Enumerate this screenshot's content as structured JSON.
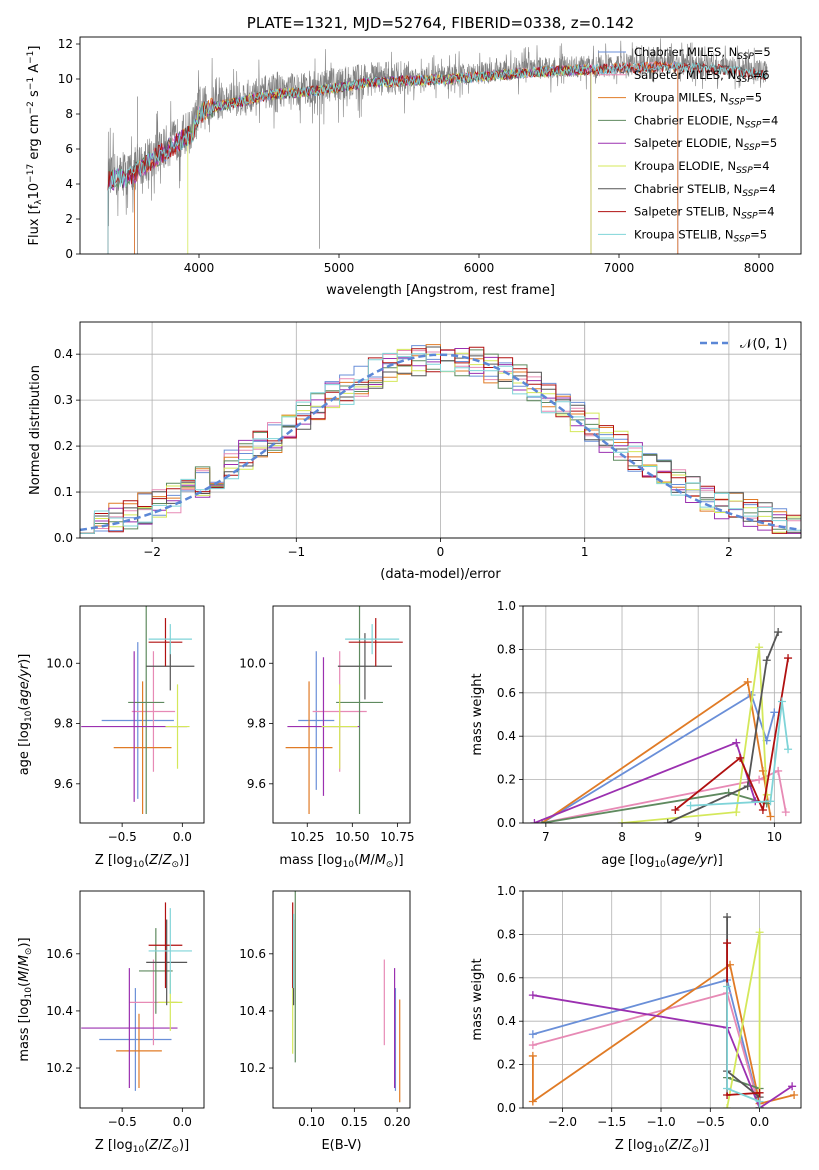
{
  "colors": {
    "chabrier_miles": "#6a8fd8",
    "salpeter_miles": "#e78ab5",
    "kroupa_miles": "#e07b26",
    "chabrier_elodie": "#5f8a5f",
    "salpeter_elodie": "#9b30b0",
    "kroupa_elodie": "#d4e85a",
    "chabrier_stelib": "#555555",
    "salpeter_stelib": "#b01010",
    "kroupa_stelib": "#7fd4d8",
    "data": "#808080",
    "normal": "#5b87d6",
    "grid": "#b0b0b0"
  },
  "chart_data": [
    {
      "id": "spectrum",
      "type": "line",
      "title": "PLATE=1321, MJD=52764, FIBERID=0338, z=0.142",
      "xlabel": "wavelength [Angstrom, rest frame]",
      "ylabel": "Flux [f_λ10^-17 erg cm^-2 s^-1 A^-1]",
      "xlim": [
        3150,
        8300
      ],
      "ylim": [
        0,
        12.4
      ],
      "xticks": [
        4000,
        5000,
        6000,
        7000,
        8000
      ],
      "yticks": [
        0,
        2,
        4,
        6,
        8,
        10,
        12
      ],
      "grid": false,
      "legend": "upper right",
      "continuum": [
        [
          3350,
          4.4
        ],
        [
          3500,
          4.6
        ],
        [
          3650,
          5.5
        ],
        [
          3800,
          6.3
        ],
        [
          3950,
          7.1
        ],
        [
          4000,
          8.2
        ],
        [
          4100,
          8.6
        ],
        [
          4300,
          8.9
        ],
        [
          4500,
          9.3
        ],
        [
          4800,
          9.5
        ],
        [
          5000,
          9.7
        ],
        [
          5200,
          10.0
        ],
        [
          5500,
          10.1
        ],
        [
          5800,
          10.2
        ],
        [
          6100,
          10.4
        ],
        [
          6400,
          10.6
        ],
        [
          6700,
          10.7
        ],
        [
          7000,
          10.8
        ],
        [
          7300,
          10.9
        ],
        [
          7600,
          10.8
        ],
        [
          7900,
          10.6
        ],
        [
          8050,
          10.4
        ]
      ],
      "series": [
        {
          "name": "Chabrier MILES, N_SSP=5"
        },
        {
          "name": "Salpeter MILES, N_SSP=6"
        },
        {
          "name": "Kroupa MILES, N_SSP=5"
        },
        {
          "name": "Chabrier ELODIE, N_SSP=4"
        },
        {
          "name": "Salpeter ELODIE, N_SSP=5"
        },
        {
          "name": "Kroupa ELODIE, N_SSP=4"
        },
        {
          "name": "Chabrier STELIB, N_SSP=4"
        },
        {
          "name": "Salpeter STELIB, N_SSP=4"
        },
        {
          "name": "Kroupa STELIB, N_SSP=5"
        }
      ]
    },
    {
      "id": "residuals",
      "type": "line",
      "xlabel": "(data-model)/error",
      "ylabel": "Normed distribution",
      "xlim": [
        -2.5,
        2.5
      ],
      "ylim": [
        0,
        0.47
      ],
      "xticks": [
        -2,
        -1,
        0,
        1,
        2
      ],
      "yticks": [
        0.0,
        0.1,
        0.2,
        0.3,
        0.4
      ],
      "grid": true,
      "legend": "upper right",
      "normal_label": "𝒩(0, 1)",
      "bin_width": 0.1
    },
    {
      "id": "age_vs_Z",
      "type": "scatter",
      "xlabel": "Z [log10(Z/Z⊙)]",
      "ylabel": "age [log10(age/yr)]",
      "xlim": [
        -0.85,
        0.18
      ],
      "ylim": [
        9.47,
        10.19
      ],
      "xticks": [
        -0.5,
        0.0
      ],
      "yticks": [
        9.6,
        9.8,
        10.0
      ],
      "points": [
        {
          "series": "chabrier_miles",
          "x": -0.37,
          "y": 9.81,
          "xerr": 0.3,
          "yerr": 0.26
        },
        {
          "series": "salpeter_miles",
          "x": -0.24,
          "y": 9.84,
          "xerr": 0.18,
          "yerr": 0.2
        },
        {
          "series": "kroupa_miles",
          "x": -0.33,
          "y": 9.72,
          "xerr": 0.24,
          "yerr": 0.22
        },
        {
          "series": "chabrier_elodie",
          "x": -0.3,
          "y": 9.87,
          "xerr": 0.15,
          "yerr": 0.37
        },
        {
          "series": "salpeter_elodie",
          "x": -0.4,
          "y": 9.79,
          "xerr": 0.44,
          "yerr": 0.25
        },
        {
          "series": "kroupa_elodie",
          "x": -0.04,
          "y": 9.79,
          "xerr": 0.1,
          "yerr": 0.14
        },
        {
          "series": "chabrier_stelib",
          "x": -0.1,
          "y": 9.99,
          "xerr": 0.2,
          "yerr": 0.08
        },
        {
          "series": "salpeter_stelib",
          "x": -0.14,
          "y": 10.07,
          "xerr": 0.14,
          "yerr": 0.08
        },
        {
          "series": "kroupa_stelib",
          "x": -0.1,
          "y": 10.08,
          "xerr": 0.18,
          "yerr": 0.05
        }
      ]
    },
    {
      "id": "age_vs_mass",
      "type": "scatter",
      "xlabel": "mass [log10(M/M⊙)]",
      "ylabel": "",
      "xlim": [
        10.06,
        10.82
      ],
      "ylim": [
        9.47,
        10.19
      ],
      "xticks": [
        10.25,
        10.5,
        10.75
      ],
      "yticks": [
        9.6,
        9.8,
        10.0
      ],
      "points": [
        {
          "series": "chabrier_miles",
          "x": 10.3,
          "y": 9.81,
          "xerr": 0.1,
          "yerr": 0.23
        },
        {
          "series": "salpeter_miles",
          "x": 10.43,
          "y": 9.84,
          "xerr": 0.15,
          "yerr": 0.2
        },
        {
          "series": "kroupa_miles",
          "x": 10.26,
          "y": 9.72,
          "xerr": 0.13,
          "yerr": 0.22
        },
        {
          "series": "chabrier_elodie",
          "x": 10.54,
          "y": 9.87,
          "xerr": 0.13,
          "yerr": 0.37
        },
        {
          "series": "salpeter_elodie",
          "x": 10.34,
          "y": 9.79,
          "xerr": 0.2,
          "yerr": 0.23
        },
        {
          "series": "kroupa_elodie",
          "x": 10.43,
          "y": 9.79,
          "xerr": 0.1,
          "yerr": 0.14
        },
        {
          "series": "chabrier_stelib",
          "x": 10.57,
          "y": 9.99,
          "xerr": 0.15,
          "yerr": 0.11
        },
        {
          "series": "salpeter_stelib",
          "x": 10.63,
          "y": 10.07,
          "xerr": 0.15,
          "yerr": 0.08
        },
        {
          "series": "kroupa_stelib",
          "x": 10.61,
          "y": 10.08,
          "xerr": 0.15,
          "yerr": 0.05
        }
      ]
    },
    {
      "id": "weight_vs_age",
      "type": "line",
      "xlabel": "age [log10(age/yr)]",
      "ylabel": "mass weight",
      "xlim": [
        6.7,
        10.35
      ],
      "ylim": [
        0,
        1.0
      ],
      "xticks": [
        7,
        8,
        9,
        10
      ],
      "yticks": [
        0.0,
        0.2,
        0.4,
        0.6,
        0.8,
        1.0
      ],
      "grid": true,
      "series": [
        {
          "key": "chabrier_miles",
          "x": [
            6.95,
            9.7,
            9.9,
            10.0
          ],
          "y": [
            0.0,
            0.59,
            0.38,
            0.51
          ]
        },
        {
          "key": "salpeter_miles",
          "x": [
            6.95,
            9.8,
            10.05,
            10.15
          ],
          "y": [
            0.0,
            0.2,
            0.24,
            0.05
          ]
        },
        {
          "key": "kroupa_miles",
          "x": [
            6.95,
            9.65,
            9.85,
            9.95
          ],
          "y": [
            0.0,
            0.65,
            0.24,
            0.03
          ]
        },
        {
          "key": "chabrier_elodie",
          "x": [
            6.95,
            9.4,
            9.9
          ],
          "y": [
            0.0,
            0.14,
            0.09
          ]
        },
        {
          "key": "salpeter_elodie",
          "x": [
            6.85,
            9.5,
            9.75
          ],
          "y": [
            0.0,
            0.37,
            0.1
          ]
        },
        {
          "key": "kroupa_elodie",
          "x": [
            8.0,
            9.5,
            9.8,
            9.9
          ],
          "y": [
            0.0,
            0.05,
            0.81,
            0.13
          ]
        },
        {
          "key": "chabrier_stelib",
          "x": [
            8.6,
            9.65,
            9.9,
            10.05
          ],
          "y": [
            0.0,
            0.17,
            0.75,
            0.88
          ]
        },
        {
          "key": "salpeter_stelib",
          "x": [
            8.7,
            9.55,
            9.85,
            10.18
          ],
          "y": [
            0.06,
            0.3,
            0.06,
            0.76
          ]
        },
        {
          "key": "kroupa_stelib",
          "x": [
            8.9,
            9.95,
            10.1,
            10.18
          ],
          "y": [
            0.08,
            0.1,
            0.56,
            0.34
          ]
        }
      ]
    },
    {
      "id": "mass_vs_Z",
      "type": "scatter",
      "xlabel": "Z [log10(Z/Z⊙)]",
      "ylabel": "mass [log10(M/M⊙)]",
      "xlim": [
        -0.85,
        0.18
      ],
      "ylim": [
        10.06,
        10.82
      ],
      "xticks": [
        -0.5,
        0.0
      ],
      "yticks": [
        10.2,
        10.4,
        10.6
      ],
      "points": [
        {
          "series": "chabrier_miles",
          "x": -0.39,
          "y": 10.3,
          "xerr": 0.3,
          "yerr": 0.18
        },
        {
          "series": "salpeter_miles",
          "x": -0.24,
          "y": 10.43,
          "xerr": 0.2,
          "yerr": 0.15
        },
        {
          "series": "kroupa_miles",
          "x": -0.36,
          "y": 10.26,
          "xerr": 0.19,
          "yerr": 0.13
        },
        {
          "series": "chabrier_elodie",
          "x": -0.22,
          "y": 10.54,
          "xerr": 0.14,
          "yerr": 0.15
        },
        {
          "series": "salpeter_elodie",
          "x": -0.44,
          "y": 10.34,
          "xerr": 0.4,
          "yerr": 0.21
        },
        {
          "series": "kroupa_elodie",
          "x": -0.1,
          "y": 10.43,
          "xerr": 0.1,
          "yerr": 0.1
        },
        {
          "series": "chabrier_stelib",
          "x": -0.13,
          "y": 10.57,
          "xerr": 0.17,
          "yerr": 0.15
        },
        {
          "series": "salpeter_stelib",
          "x": -0.14,
          "y": 10.63,
          "xerr": 0.14,
          "yerr": 0.15
        },
        {
          "series": "kroupa_stelib",
          "x": -0.1,
          "y": 10.61,
          "xerr": 0.18,
          "yerr": 0.15
        }
      ]
    },
    {
      "id": "mass_vs_ebv",
      "type": "scatter",
      "xlabel": "E(B-V)",
      "ylabel": "",
      "xlim": [
        0.055,
        0.215
      ],
      "ylim": [
        10.06,
        10.82
      ],
      "xticks": [
        0.1,
        0.15,
        0.2
      ],
      "yticks": [
        10.2,
        10.4,
        10.6
      ],
      "points": [
        {
          "series": "chabrier_miles",
          "x": 0.198,
          "y": 10.3,
          "yerr": 0.18
        },
        {
          "series": "salpeter_miles",
          "x": 0.185,
          "y": 10.43,
          "yerr": 0.15
        },
        {
          "series": "kroupa_miles",
          "x": 0.203,
          "y": 10.26,
          "yerr": 0.18
        },
        {
          "series": "chabrier_elodie",
          "x": 0.081,
          "y": 10.54,
          "yerr": 0.32
        },
        {
          "series": "salpeter_elodie",
          "x": 0.197,
          "y": 10.34,
          "yerr": 0.21
        },
        {
          "series": "kroupa_elodie",
          "x": 0.078,
          "y": 10.43,
          "yerr": 0.18
        },
        {
          "series": "chabrier_stelib",
          "x": 0.079,
          "y": 10.57,
          "yerr": 0.15
        },
        {
          "series": "salpeter_stelib",
          "x": 0.078,
          "y": 10.63,
          "yerr": 0.15
        },
        {
          "series": "kroupa_stelib",
          "x": 0.079,
          "y": 10.61,
          "yerr": 0.13
        }
      ]
    },
    {
      "id": "weight_vs_Z",
      "type": "line",
      "xlabel": "Z [log10(Z/Z⊙)]",
      "ylabel": "mass weight",
      "xlim": [
        -2.4,
        0.42
      ],
      "ylim": [
        0,
        1.0
      ],
      "xticks": [
        -2.0,
        -1.5,
        -1.0,
        -0.5,
        0.0
      ],
      "yticks": [
        0.0,
        0.2,
        0.4,
        0.6,
        0.8,
        1.0
      ],
      "grid": true,
      "series": [
        {
          "key": "chabrier_miles",
          "x": [
            -2.3,
            -0.33,
            0.0
          ],
          "y": [
            0.34,
            0.59,
            0.0
          ]
        },
        {
          "key": "salpeter_miles",
          "x": [
            -2.3,
            -0.33,
            0.0
          ],
          "y": [
            0.29,
            0.53,
            0.0
          ]
        },
        {
          "key": "kroupa_miles",
          "x": [
            -2.3,
            -2.3,
            -0.3,
            0.0,
            0.35
          ],
          "y": [
            0.24,
            0.03,
            0.66,
            0.02,
            0.06
          ]
        },
        {
          "key": "chabrier_elodie",
          "x": [
            -0.33,
            0.0,
            0.0
          ],
          "y": [
            0.14,
            0.09,
            0.0
          ]
        },
        {
          "key": "salpeter_elodie",
          "x": [
            -2.3,
            -0.33,
            0.0,
            0.33
          ],
          "y": [
            0.52,
            0.37,
            0.0,
            0.1
          ]
        },
        {
          "key": "kroupa_elodie",
          "x": [
            -0.33,
            0.0,
            0.0
          ],
          "y": [
            0.0,
            0.81,
            0.0
          ]
        },
        {
          "key": "chabrier_stelib",
          "x": [
            -0.33,
            -0.33,
            0.0,
            0.0
          ],
          "y": [
            0.88,
            0.17,
            0.05,
            0.0
          ]
        },
        {
          "key": "salpeter_stelib",
          "x": [
            -0.33,
            -0.33,
            0.0,
            0.0
          ],
          "y": [
            0.76,
            0.06,
            0.07,
            0.0
          ]
        },
        {
          "key": "kroupa_stelib",
          "x": [
            -0.33,
            -0.33,
            0.0,
            0.0
          ],
          "y": [
            0.56,
            0.09,
            0.03,
            0.0
          ]
        }
      ]
    }
  ]
}
